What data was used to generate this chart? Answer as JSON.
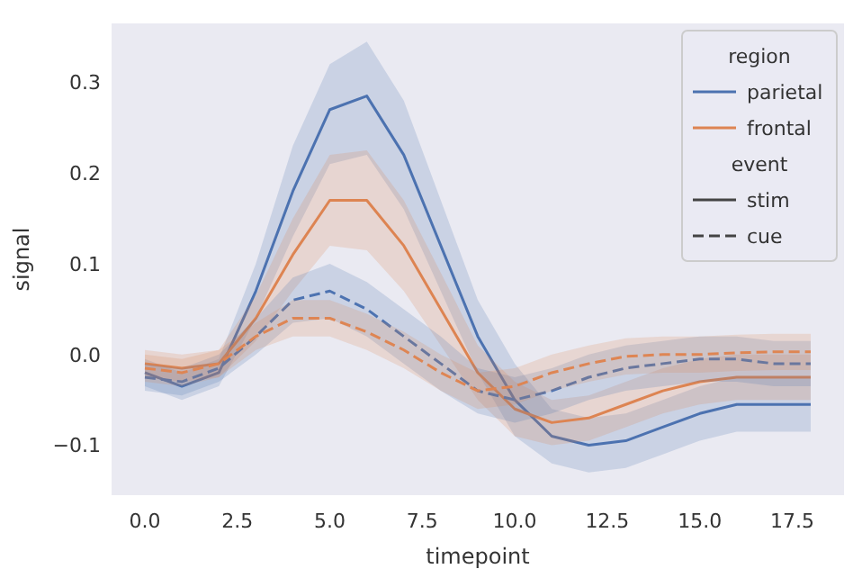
{
  "chart_data": {
    "type": "line",
    "xlabel": "timepoint",
    "ylabel": "signal",
    "legend_title": "region",
    "legend": "top right",
    "grid": false,
    "x": [
      0,
      1,
      2,
      3,
      4,
      5,
      6,
      7,
      8,
      9,
      10,
      11,
      12,
      13,
      14,
      15,
      16,
      17,
      18
    ],
    "xlim": [
      -0.9,
      18.9
    ],
    "xticks": [
      {
        "value": 0,
        "label": "0.0"
      },
      {
        "value": 2.5,
        "label": "2.5"
      },
      {
        "value": 5,
        "label": "5.0"
      },
      {
        "value": 7.5,
        "label": "7.5"
      },
      {
        "value": 10,
        "label": "10.0"
      },
      {
        "value": 12.5,
        "label": "12.5"
      },
      {
        "value": 15,
        "label": "15.0"
      },
      {
        "value": 17.5,
        "label": "17.5"
      }
    ],
    "ylim": [
      -0.155,
      0.365
    ],
    "yticks": [
      {
        "value": -0.1,
        "label": "−0.1"
      },
      {
        "value": 0,
        "label": "0.0"
      },
      0.1,
      0.2,
      0.3
    ],
    "annotations": [
      "event",
      "stim",
      "cue"
    ],
    "series": [
      {
        "name": "parietal",
        "color": "#4c72b0",
        "line_style": "solid",
        "values": [
          -0.02,
          -0.035,
          -0.02,
          0.07,
          0.18,
          0.27,
          0.285,
          0.22,
          0.12,
          0.02,
          -0.05,
          -0.09,
          -0.1,
          -0.095,
          -0.08,
          -0.065,
          -0.055,
          -0.055,
          -0.055
        ],
        "lower": [
          -0.035,
          -0.05,
          -0.035,
          0.04,
          0.13,
          0.21,
          0.22,
          0.16,
          0.07,
          -0.02,
          -0.09,
          -0.12,
          -0.13,
          -0.125,
          -0.11,
          -0.095,
          -0.085,
          -0.085,
          -0.085
        ],
        "upper": [
          -0.005,
          -0.02,
          -0.005,
          0.1,
          0.23,
          0.32,
          0.345,
          0.28,
          0.17,
          0.06,
          -0.01,
          -0.06,
          -0.07,
          -0.065,
          -0.05,
          -0.035,
          -0.025,
          -0.025,
          -0.025
        ]
      },
      {
        "name": "frontal",
        "color": "#dd8452",
        "line_style": "solid",
        "values": [
          -0.01,
          -0.015,
          -0.01,
          0.04,
          0.11,
          0.17,
          0.17,
          0.12,
          0.05,
          -0.02,
          -0.06,
          -0.075,
          -0.07,
          -0.055,
          -0.04,
          -0.03,
          -0.025,
          -0.025,
          -0.025
        ],
        "lower": [
          -0.025,
          -0.03,
          -0.025,
          0.015,
          0.07,
          0.12,
          0.115,
          0.07,
          0.01,
          -0.05,
          -0.09,
          -0.1,
          -0.095,
          -0.08,
          -0.065,
          -0.055,
          -0.05,
          -0.05,
          -0.05
        ],
        "upper": [
          0.005,
          0,
          0.005,
          0.065,
          0.15,
          0.22,
          0.225,
          0.17,
          0.09,
          0.01,
          -0.03,
          -0.05,
          -0.045,
          -0.03,
          -0.015,
          -0.005,
          0,
          0,
          0
        ]
      },
      {
        "color": "#4d73b1",
        "line_style": "dashed",
        "values": [
          -0.025,
          -0.03,
          -0.015,
          0.02,
          0.06,
          0.07,
          0.05,
          0.02,
          -0.01,
          -0.04,
          -0.05,
          -0.04,
          -0.025,
          -0.015,
          -0.01,
          -0.005,
          -0.005,
          -0.01,
          -0.01
        ],
        "lower": [
          -0.04,
          -0.045,
          -0.03,
          0,
          0.035,
          0.04,
          0.02,
          -0.01,
          -0.04,
          -0.065,
          -0.075,
          -0.065,
          -0.05,
          -0.04,
          -0.035,
          -0.03,
          -0.03,
          -0.035,
          -0.035
        ],
        "upper": [
          -0.01,
          -0.015,
          0,
          0.04,
          0.085,
          0.1,
          0.08,
          0.05,
          0.02,
          -0.015,
          -0.025,
          -0.015,
          0,
          0.01,
          0.015,
          0.02,
          0.02,
          0.015,
          0.015
        ]
      },
      {
        "color": "#de8553",
        "line_style": "dashed",
        "values": [
          -0.015,
          -0.02,
          -0.01,
          0.02,
          0.04,
          0.04,
          0.025,
          0.005,
          -0.02,
          -0.04,
          -0.035,
          -0.02,
          -0.01,
          -0.002,
          0,
          0,
          0.002,
          0.003,
          0.003
        ],
        "lower": [
          -0.03,
          -0.035,
          -0.025,
          0.005,
          0.02,
          0.02,
          0.005,
          -0.015,
          -0.04,
          -0.06,
          -0.055,
          -0.04,
          -0.03,
          -0.022,
          -0.02,
          -0.02,
          -0.018,
          -0.017,
          -0.017
        ],
        "upper": [
          0,
          -0.005,
          0.005,
          0.035,
          0.06,
          0.06,
          0.045,
          0.025,
          0,
          -0.02,
          -0.015,
          0,
          0.01,
          0.018,
          0.02,
          0.02,
          0.022,
          0.023,
          0.023
        ]
      }
    ]
  }
}
